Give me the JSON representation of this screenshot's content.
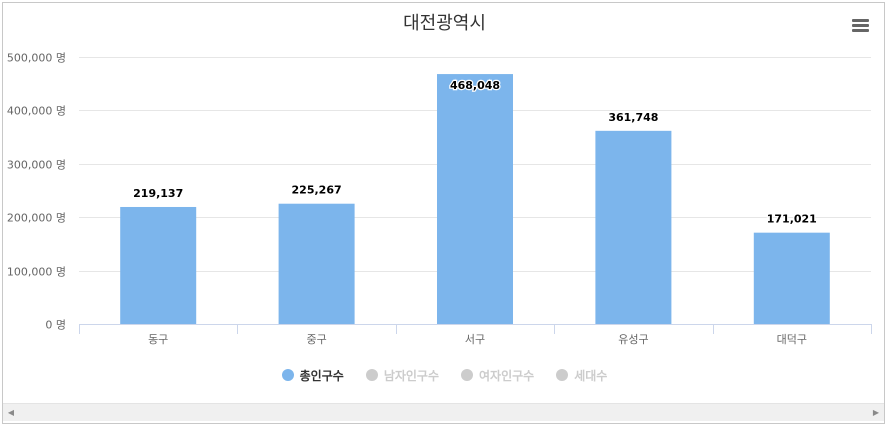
{
  "chart_data": {
    "type": "bar",
    "title": "대전광역시",
    "categories": [
      "동구",
      "중구",
      "서구",
      "유성구",
      "대덕구"
    ],
    "series": [
      {
        "name": "총인구수",
        "values": [
          219137,
          225267,
          468048,
          361748,
          171021
        ],
        "color": "#7cb5ec",
        "visible": true
      }
    ],
    "data_labels": [
      "219,137",
      "225,267",
      "468,048",
      "361,748",
      "171,021"
    ],
    "ylim": [
      0,
      500000
    ],
    "yticks": [
      0,
      100000,
      200000,
      300000,
      400000,
      500000
    ],
    "ytick_labels": [
      "0 명",
      "100,000 명",
      "200,000 명",
      "300,000 명",
      "400,000 명",
      "500,000 명"
    ],
    "grid": true,
    "legend_position": "bottom-center"
  },
  "legend": {
    "items": [
      {
        "label": "총인구수",
        "color": "#7cb5ec",
        "active": true
      },
      {
        "label": "남자인구수",
        "color": "#cccccc",
        "active": false
      },
      {
        "label": "여자인구수",
        "color": "#cccccc",
        "active": false
      },
      {
        "label": "세대수",
        "color": "#cccccc",
        "active": false
      }
    ]
  },
  "menu": {
    "icon": "hamburger-menu-icon"
  },
  "scrollbar": {
    "left_icon": "scroll-left-arrow-icon",
    "right_icon": "scroll-right-arrow-icon",
    "left_glyph": "◀",
    "right_glyph": "▶"
  }
}
